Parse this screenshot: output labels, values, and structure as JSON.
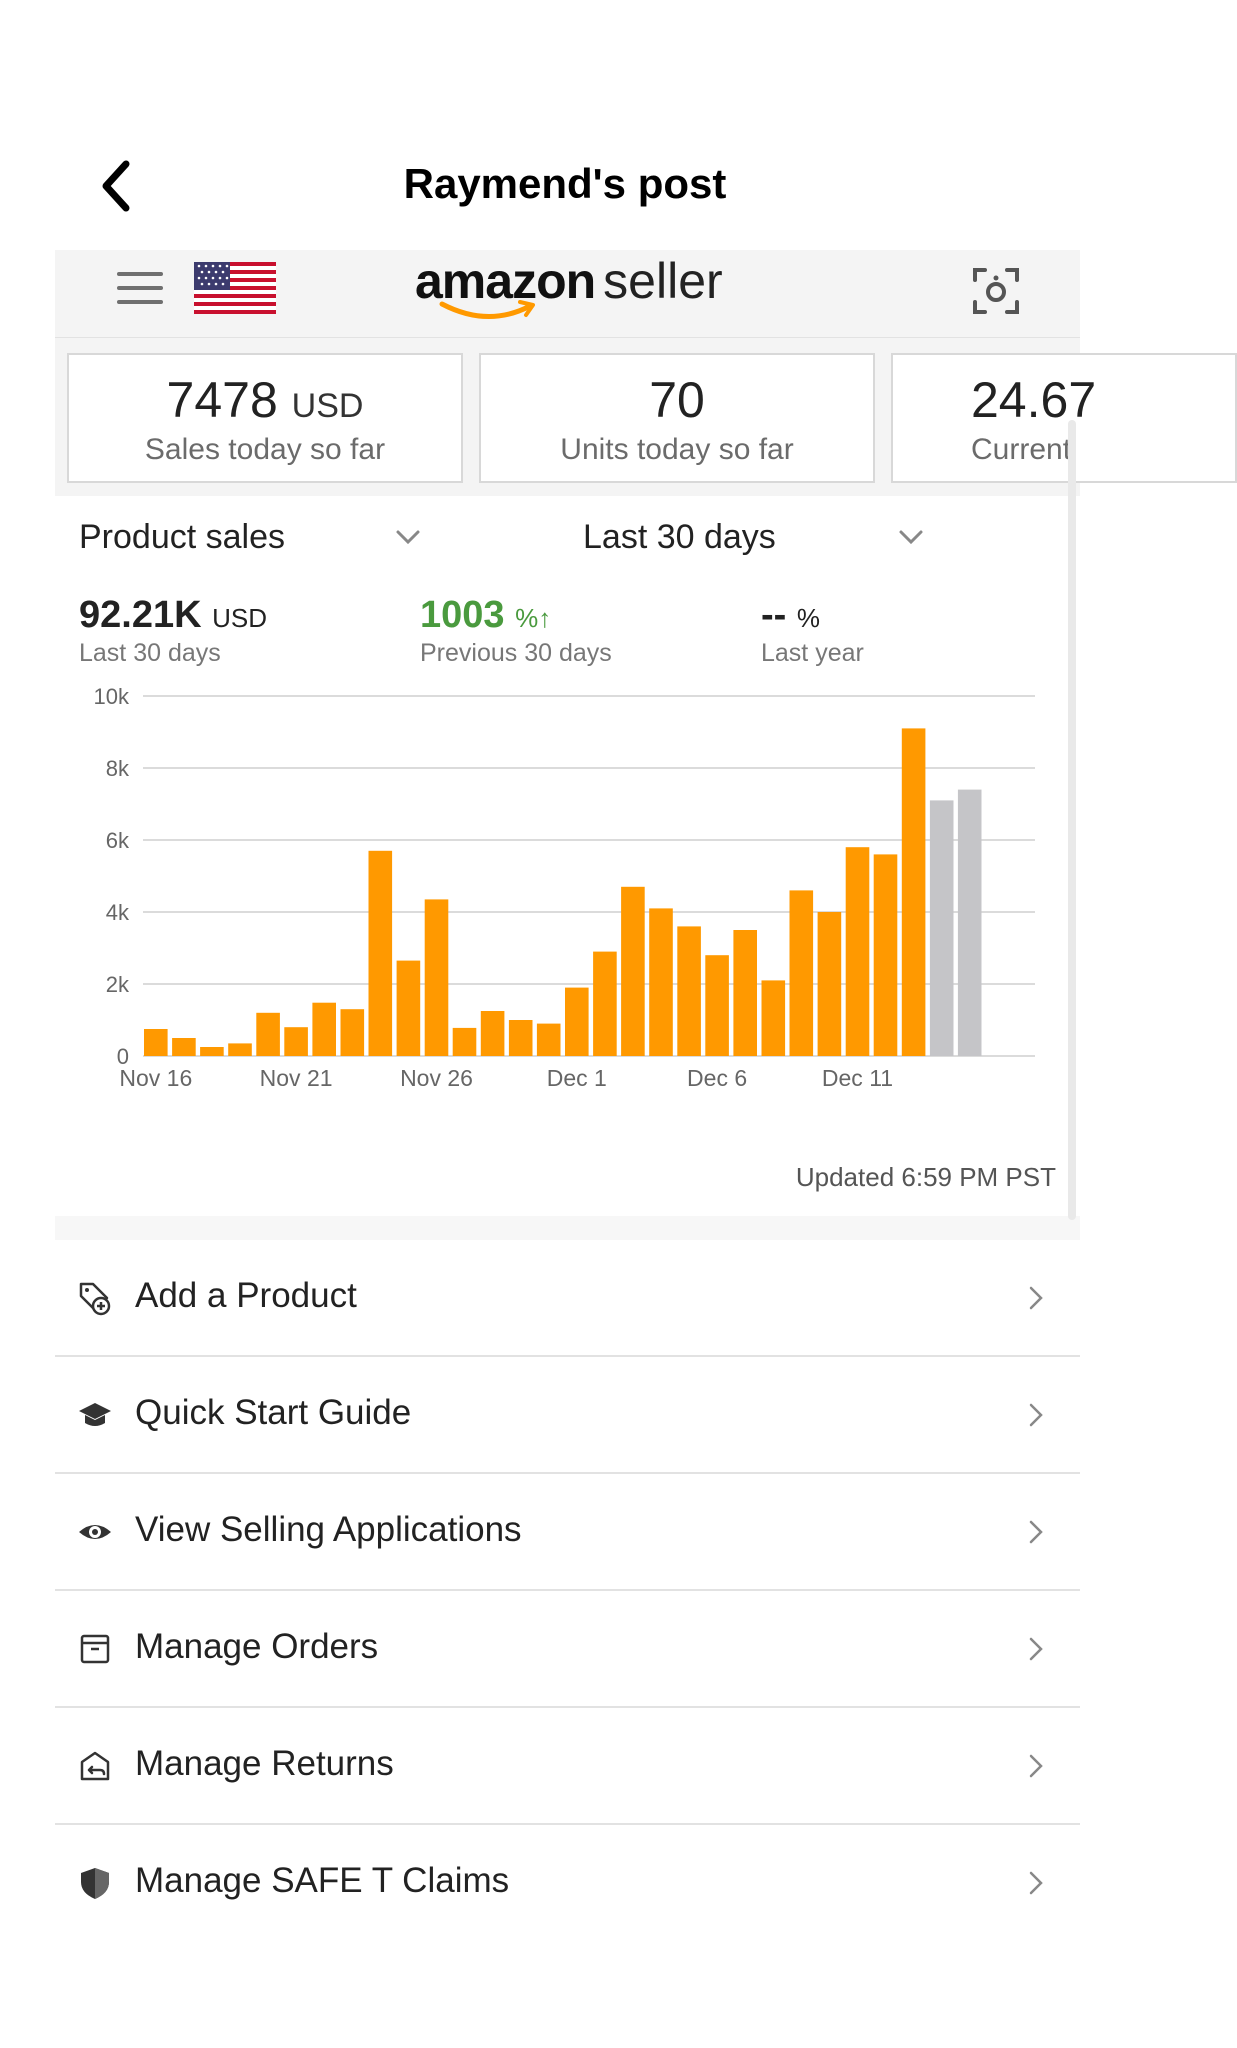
{
  "post": {
    "title": "Raymend's post"
  },
  "app": {
    "brand": "amazon",
    "suffix": "seller"
  },
  "stats": [
    {
      "value": "7478",
      "unit": "USD",
      "label": "Sales today so far"
    },
    {
      "value": "70",
      "unit": "",
      "label": "Units today so far"
    },
    {
      "value": "24.67",
      "unit": "",
      "label": "Current"
    }
  ],
  "sales": {
    "metric_selector": "Product sales",
    "period_selector": "Last 30 days",
    "total": {
      "value": "92.21K",
      "unit": "USD",
      "label": "Last 30 days"
    },
    "change": {
      "value": "1003",
      "unit": "%",
      "arrow": "↑",
      "label": "Previous 30 days"
    },
    "last_year": {
      "value": "--",
      "unit": "%",
      "label": "Last year"
    },
    "updated": "Updated 6:59 PM PST"
  },
  "colors": {
    "bar": "#ff9900",
    "bar_projected": "#c5c5c8",
    "accent_green": "#4a9a3e",
    "smile": "#ff9900"
  },
  "chart_data": {
    "type": "bar",
    "y_ticks": [
      "0",
      "2k",
      "4k",
      "6k",
      "8k",
      "10k"
    ],
    "ylim": [
      0,
      10000
    ],
    "x_tick_labels": [
      "Nov 16",
      "Nov 21",
      "Nov 26",
      "Dec 1",
      "Dec 6",
      "Dec 11"
    ],
    "x_tick_positions": [
      0,
      5,
      10,
      15,
      20,
      25
    ],
    "values": [
      750,
      500,
      250,
      350,
      1200,
      800,
      1480,
      1300,
      5700,
      2650,
      4350,
      780,
      1250,
      1000,
      900,
      1900,
      2900,
      4700,
      4100,
      3600,
      2800,
      3500,
      2100,
      4600,
      4000,
      5800,
      5600,
      9100,
      7100,
      7400
    ],
    "projected_from_index": 28,
    "grid": true
  },
  "menu": [
    {
      "label": "Add a Product",
      "icon": "tag-add-icon"
    },
    {
      "label": "Quick Start Guide",
      "icon": "graduation-cap-icon"
    },
    {
      "label": "View Selling Applications",
      "icon": "eye-icon"
    },
    {
      "label": "Manage Orders",
      "icon": "box-icon"
    },
    {
      "label": "Manage Returns",
      "icon": "return-box-icon"
    },
    {
      "label": "Manage SAFE T Claims",
      "icon": "shield-icon"
    }
  ]
}
